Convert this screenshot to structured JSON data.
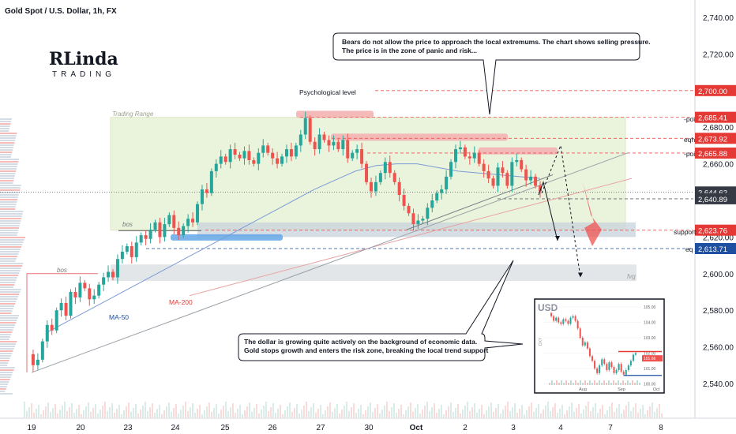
{
  "chart_data": {
    "type": "candlestick",
    "title": "Gold Spot / U.S. Dollar, 1h, FX",
    "y_ticks": [
      2540,
      2560,
      2580,
      2600,
      2620,
      2640,
      2660,
      2680,
      2700,
      2720,
      2740
    ],
    "y_tick_labels": [
      "2,540.00",
      "2,560.00",
      "2,580.00",
      "2,600.00",
      "2,620.00",
      "2,640.00",
      "2,660.00",
      "2,680.00",
      "2,700.00",
      "2,720.00",
      "2,740.00"
    ],
    "ylim": [
      2532,
      2748
    ],
    "x_ticks": [
      "19",
      "20",
      "23",
      "24",
      "25",
      "26",
      "27",
      "30",
      "Oct",
      "2",
      "3",
      "4",
      "7",
      "8"
    ],
    "price_path": [
      2556,
      2550,
      2553,
      2563,
      2572,
      2569,
      2580,
      2584,
      2577,
      2590,
      2587,
      2595,
      2592,
      2586,
      2588,
      2594,
      2598,
      2601,
      2598,
      2608,
      2612,
      2615,
      2609,
      2617,
      2621,
      2619,
      2624,
      2628,
      2620,
      2627,
      2632,
      2625,
      2621,
      2626,
      2630,
      2628,
      2638,
      2646,
      2644,
      2656,
      2660,
      2664,
      2661,
      2668,
      2665,
      2663,
      2667,
      2662,
      2660,
      2666,
      2670,
      2666,
      2663,
      2660,
      2664,
      2668,
      2664,
      2670,
      2676,
      2685,
      2672,
      2668,
      2676,
      2673,
      2670,
      2672,
      2668,
      2673,
      2663,
      2666,
      2668,
      2660,
      2650,
      2645,
      2650,
      2655,
      2661,
      2655,
      2650,
      2643,
      2637,
      2633,
      2627,
      2629,
      2630,
      2636,
      2640,
      2644,
      2646,
      2653,
      2661,
      2668,
      2669,
      2664,
      2663,
      2666,
      2660,
      2656,
      2652,
      2648,
      2658,
      2655,
      2648,
      2661,
      2662,
      2657,
      2651,
      2653,
      2648,
      2645
    ],
    "series": [
      {
        "name": "MA-50",
        "values": [
          2568,
          2574,
          2580,
          2586,
          2592,
          2598,
          2604,
          2610,
          2616,
          2622,
          2628,
          2634,
          2640,
          2646,
          2651,
          2656,
          2659,
          2660,
          2660,
          2658,
          2656,
          2655,
          2654,
          2653,
          2652
        ]
      },
      {
        "name": "MA-200",
        "values": [
          2588,
          2592,
          2596,
          2600,
          2604,
          2608,
          2612,
          2616,
          2620,
          2624,
          2628,
          2632,
          2636,
          2640,
          2644,
          2648,
          2652
        ]
      }
    ],
    "levels": [
      {
        "label": "Psychological level",
        "price": 2700
      },
      {
        "label": "-poi",
        "price": 2685.41,
        "badge": "2,685.41",
        "color": "#e53935"
      },
      {
        "label": "eqh",
        "price": 2673.92,
        "badge": "2,673.92",
        "color": "#e53935"
      },
      {
        "label": "-poi",
        "price": 2665.88,
        "badge": "2,665.88",
        "color": "#e53935"
      },
      {
        "label": "",
        "price": 2644.62,
        "badge": "2,644.62",
        "color": "#363a45"
      },
      {
        "label": "",
        "price": 2640.89,
        "badge": "2,640.89",
        "color": "#363a45"
      },
      {
        "label": "support",
        "price": 2623.76,
        "badge": "2,623.76",
        "color": "#e53935"
      },
      {
        "label": "eq",
        "price": 2613.71,
        "badge": "2,613.71",
        "color": "#1e4fa0"
      }
    ],
    "badge_700": {
      "text": "2,700.00",
      "color": "#e53935"
    },
    "zones": {
      "trading_range": "Trading Range",
      "bos_upper": "bos",
      "bos_lower": "bos",
      "fvg": "fvg"
    },
    "annotations": {
      "top_note": [
        "Bears do not allow the price to approach the local extremums. The chart shows selling pressure.",
        "The price is in the zone of panic and risk..."
      ],
      "bottom_note": [
        "The dollar is growing quite actively on the background of economic data.",
        "Gold stops growth and enters the risk zone, breaking the local trend support"
      ],
      "ma50_label": "MA-50",
      "ma200_label": "MA-200"
    },
    "logo": {
      "line1": "RLinda",
      "line2": "TRADING"
    },
    "inset": {
      "title": "USD",
      "y_ticks": [
        "105.00",
        "104.00",
        "103.00",
        "102.00",
        "101.00",
        "100.00"
      ],
      "x_ticks": [
        "Aug",
        "Sep",
        "Oct"
      ],
      "side_label": "DXY",
      "current": "101.66",
      "path": [
        104.6,
        104.4,
        104.1,
        104.3,
        104.0,
        103.9,
        104.2,
        104.1,
        103.9,
        104.3,
        104.4,
        104.1,
        103.6,
        103.0,
        102.5,
        102.7,
        102.3,
        101.8,
        101.5,
        101.0,
        100.7,
        101.2,
        101.6,
        101.3,
        100.9,
        101.4,
        101.1,
        100.7,
        100.9,
        101.3,
        100.8,
        100.6,
        100.9,
        101.2,
        101.5,
        101.9,
        102.0
      ]
    }
  },
  "colors": {
    "up": "#26a69a",
    "down": "#ef5350",
    "range_fill": "#e6f2d4",
    "support_fill": "#c8d3dc",
    "blue_zone": "#64a7e6",
    "red_zone": "#f3b2b2"
  }
}
